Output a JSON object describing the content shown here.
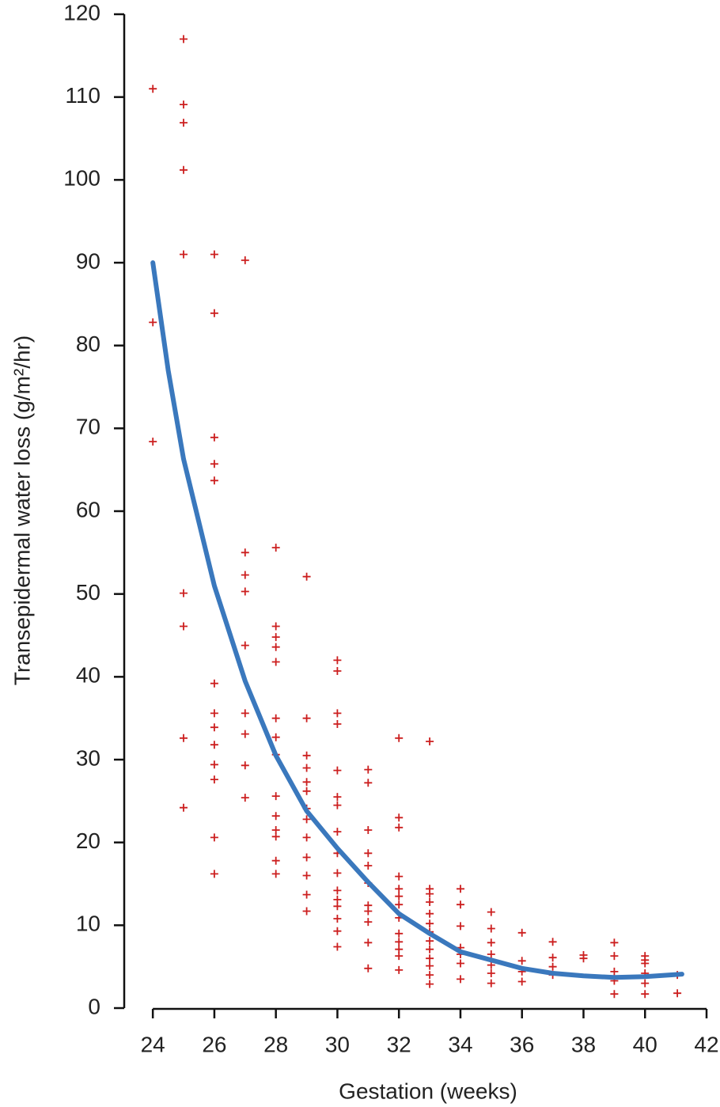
{
  "chart_data": {
    "type": "scatter",
    "xlabel": "Gestation (weeks)",
    "ylabel": "Transepidermal water loss (g/m²/hr)",
    "xlim": [
      23.07,
      42
    ],
    "ylim": [
      0,
      120
    ],
    "xticks": [
      24,
      26,
      28,
      30,
      32,
      34,
      36,
      38,
      40,
      42
    ],
    "yticks": [
      0,
      10,
      20,
      30,
      40,
      50,
      60,
      70,
      80,
      90,
      100,
      110,
      120
    ],
    "series": [
      {
        "color": "#cc1f1f",
        "marker": "+",
        "x": [
          24,
          24,
          24,
          25,
          25,
          25,
          25,
          25,
          25,
          25,
          25,
          25,
          26,
          26,
          26,
          26,
          26,
          26,
          26,
          26,
          26,
          26,
          26,
          26,
          26,
          27,
          27,
          27,
          27,
          27,
          27,
          27,
          27,
          27,
          28,
          28,
          28,
          28,
          28,
          28,
          28,
          28,
          28,
          28,
          28,
          28,
          28,
          28,
          29,
          29,
          29,
          29,
          29,
          29,
          29,
          29,
          29,
          29,
          29,
          29,
          29,
          30,
          30,
          30,
          30,
          30,
          30,
          30,
          30,
          30,
          30,
          30,
          30,
          30,
          30,
          30,
          30,
          31,
          31,
          31,
          31,
          31,
          31,
          31,
          31,
          31,
          31,
          31,
          32,
          32,
          32,
          32,
          32,
          32,
          32,
          32,
          32,
          32,
          32,
          32,
          32,
          33,
          33,
          33,
          33,
          33,
          33,
          33,
          33,
          33,
          33,
          33,
          33,
          33,
          34,
          34,
          34,
          34,
          34,
          34,
          34,
          35,
          35,
          35,
          35,
          35,
          35,
          35,
          36,
          36,
          36,
          36,
          37,
          37,
          37,
          37,
          38,
          38,
          39,
          39,
          39,
          39,
          39,
          40,
          40,
          40,
          40,
          40,
          40,
          41.05,
          41.05
        ],
        "values": [
          111,
          82.8,
          68.4,
          117,
          109.1,
          106.9,
          101.2,
          91,
          50.1,
          46.1,
          32.6,
          24.2,
          91,
          83.9,
          68.9,
          65.7,
          63.7,
          39.2,
          35.6,
          33.9,
          31.8,
          29.4,
          27.6,
          20.6,
          16.2,
          90.3,
          55,
          52.3,
          50.3,
          43.8,
          35.6,
          33.1,
          29.3,
          25.4,
          55.6,
          46.1,
          44.8,
          43.6,
          41.8,
          35,
          32.7,
          30.6,
          25.6,
          23.2,
          21.5,
          20.7,
          17.8,
          16.2,
          52.1,
          35,
          30.5,
          29,
          27.3,
          26.2,
          24.1,
          22.8,
          20.6,
          18.2,
          16,
          13.7,
          11.7,
          42,
          40.7,
          35.6,
          34.3,
          28.7,
          25.5,
          24.5,
          21.3,
          18.7,
          16.3,
          14.2,
          13.1,
          12.3,
          10.8,
          9.3,
          7.4,
          28.8,
          27.2,
          21.5,
          18.7,
          17.2,
          15.1,
          12.4,
          11.7,
          10.4,
          7.9,
          4.8,
          32.6,
          23,
          21.8,
          15.9,
          14.4,
          13.5,
          12.5,
          10.9,
          9,
          8,
          7.1,
          6.3,
          4.6,
          32.2,
          14.4,
          13.8,
          12.8,
          11.4,
          10.2,
          9.2,
          8.1,
          7.1,
          6,
          5.1,
          4,
          2.9,
          14.4,
          12.5,
          9.9,
          7.3,
          6.5,
          5.4,
          3.5,
          11.6,
          9.6,
          7.9,
          6.5,
          5.2,
          4.2,
          3,
          9.1,
          5.7,
          4.4,
          3.2,
          8,
          6.1,
          5,
          4,
          6.4,
          6,
          7.9,
          6.3,
          4.4,
          3.3,
          1.7,
          6.3,
          5.8,
          5.4,
          4.2,
          3,
          1.7,
          4,
          1.8
        ]
      },
      {
        "color": "#3a78bd",
        "style": "line",
        "x": [
          24,
          24.5,
          25,
          26,
          27,
          28,
          29,
          30,
          31,
          32,
          33,
          34,
          35,
          36,
          37,
          38,
          39,
          40,
          41.2
        ],
        "values": [
          90,
          77,
          66.3,
          51,
          39.5,
          30.5,
          23.8,
          19.3,
          15.2,
          11.4,
          9,
          6.8,
          5.8,
          4.8,
          4.2,
          3.9,
          3.7,
          3.8,
          4.1
        ]
      }
    ]
  }
}
